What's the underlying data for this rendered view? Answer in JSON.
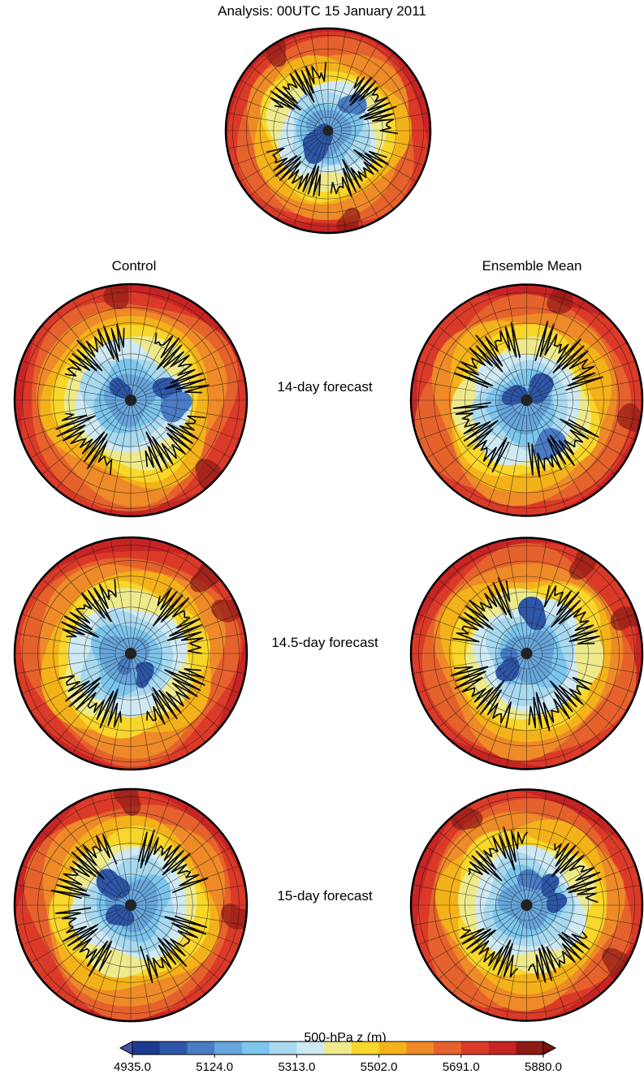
{
  "figure": {
    "analysis_title": "Analysis: 00UTC 15 January 2011",
    "column_left": "Control",
    "column_right": "Ensemble Mean"
  },
  "rows": [
    {
      "forecast_label": "14-day forecast"
    },
    {
      "forecast_label": "14.5-day forecast"
    },
    {
      "forecast_label": "15-day forecast"
    }
  ],
  "colorbar": {
    "title": "500-hPa z (m)",
    "ticks": [
      "4935.0",
      "5124.0",
      "5313.0",
      "5502.0",
      "5691.0",
      "5880.0"
    ],
    "colors": [
      "#1c3a8f",
      "#2e56a8",
      "#4a7cc4",
      "#67a6dc",
      "#7cc6ee",
      "#a8d9ef",
      "#cfe9f2",
      "#eeea8c",
      "#f8d62a",
      "#f4b21a",
      "#ee8a28",
      "#e6622c",
      "#dc3a28",
      "#c82424",
      "#8e1a16"
    ],
    "under_color": "#4654a8",
    "over_color": "#7a1410"
  }
}
